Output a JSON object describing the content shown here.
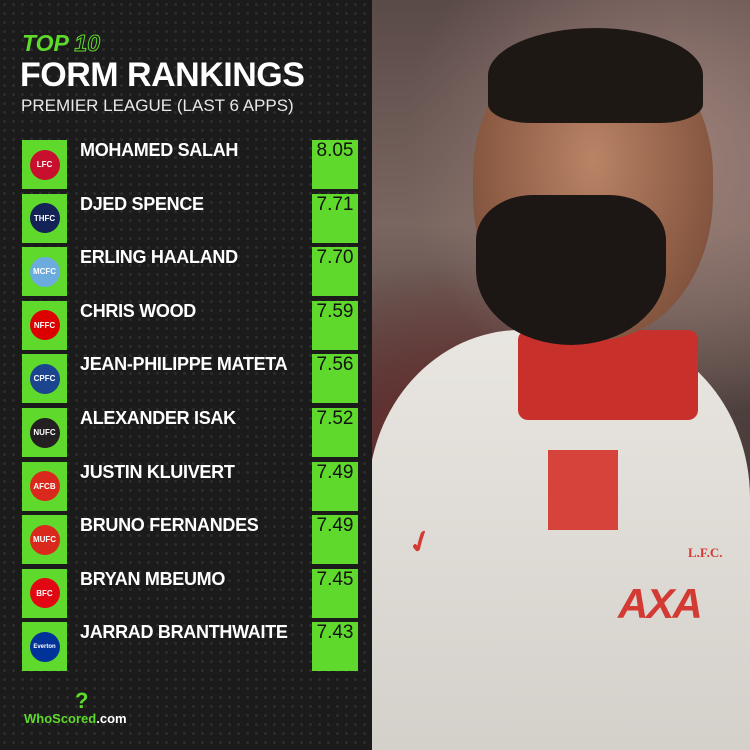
{
  "header": {
    "top": "TOP",
    "ten": "10",
    "title": "FORM RANKINGS",
    "subtitle": "PREMIER LEAGUE (LAST 6 APPS)"
  },
  "colors": {
    "accent": "#5fd92c",
    "background": "#1b1b1b"
  },
  "rankings": [
    {
      "name": "MOHAMED SALAH",
      "rating": "8.05",
      "club_icon": "liverpool-crest-icon",
      "crest_color": "#c8102e",
      "crest_text": "LFC"
    },
    {
      "name": "DJED SPENCE",
      "rating": "7.71",
      "club_icon": "tottenham-crest-icon",
      "crest_color": "#132257",
      "crest_text": "THFC"
    },
    {
      "name": "ERLING HAALAND",
      "rating": "7.70",
      "club_icon": "man-city-crest-icon",
      "crest_color": "#6cabdd",
      "crest_text": "MCFC"
    },
    {
      "name": "CHRIS WOOD",
      "rating": "7.59",
      "club_icon": "nottingham-forest-crest-icon",
      "crest_color": "#dd0000",
      "crest_text": "NFFC"
    },
    {
      "name": "JEAN-PHILIPPE MATETA",
      "rating": "7.56",
      "club_icon": "crystal-palace-crest-icon",
      "crest_color": "#1b458f",
      "crest_text": "CPFC"
    },
    {
      "name": "ALEXANDER ISAK",
      "rating": "7.52",
      "club_icon": "newcastle-crest-icon",
      "crest_color": "#241f20",
      "crest_text": "NUFC"
    },
    {
      "name": "JUSTIN KLUIVERT",
      "rating": "7.49",
      "club_icon": "bournemouth-crest-icon",
      "crest_color": "#da291c",
      "crest_text": "AFCB"
    },
    {
      "name": "BRUNO FERNANDES",
      "rating": "7.49",
      "club_icon": "man-united-crest-icon",
      "crest_color": "#da291c",
      "crest_text": "MUFC"
    },
    {
      "name": "BRYAN MBEUMO",
      "rating": "7.45",
      "club_icon": "brentford-crest-icon",
      "crest_color": "#e30613",
      "crest_text": "BFC"
    },
    {
      "name": "JARRAD BRANTHWAITE",
      "rating": "7.43",
      "club_icon": "everton-crest-icon",
      "crest_color": "#003399",
      "crest_text": "Everton"
    }
  ],
  "photo": {
    "sponsor": "AXA",
    "club_text": "L.F.C."
  },
  "footer": {
    "logo_a": "WhoScored",
    "logo_b": ".com"
  }
}
